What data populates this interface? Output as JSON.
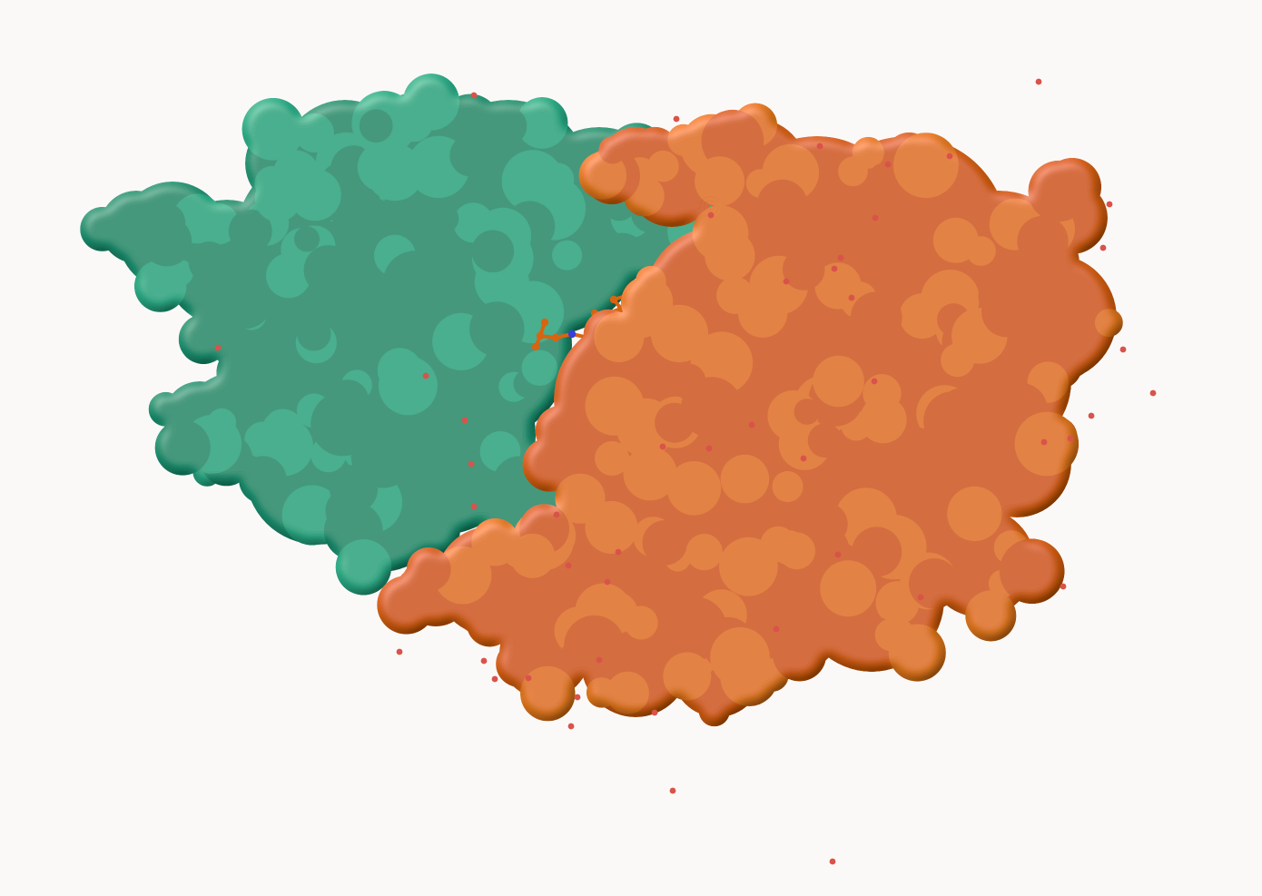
{
  "scene": {
    "background_color": "#fbf9f8",
    "chains": [
      {
        "name": "chain-a",
        "representation": "molecular-surface",
        "base_color": "#1e9a78",
        "light_color": "#2db58e",
        "shade_color": "#137258"
      },
      {
        "name": "chain-b",
        "representation": "molecular-surface",
        "base_color": "#e0650e",
        "light_color": "#f0801f",
        "shade_color": "#a94805"
      }
    ],
    "ligand": {
      "representation": "ball-and-stick",
      "carbon_color": "#d9640f",
      "nitrogen_color": "#3a3fd6",
      "oxygen_color": "#cc1f1f"
    },
    "water": {
      "representation": "spheres",
      "color": "#d9534a"
    }
  }
}
